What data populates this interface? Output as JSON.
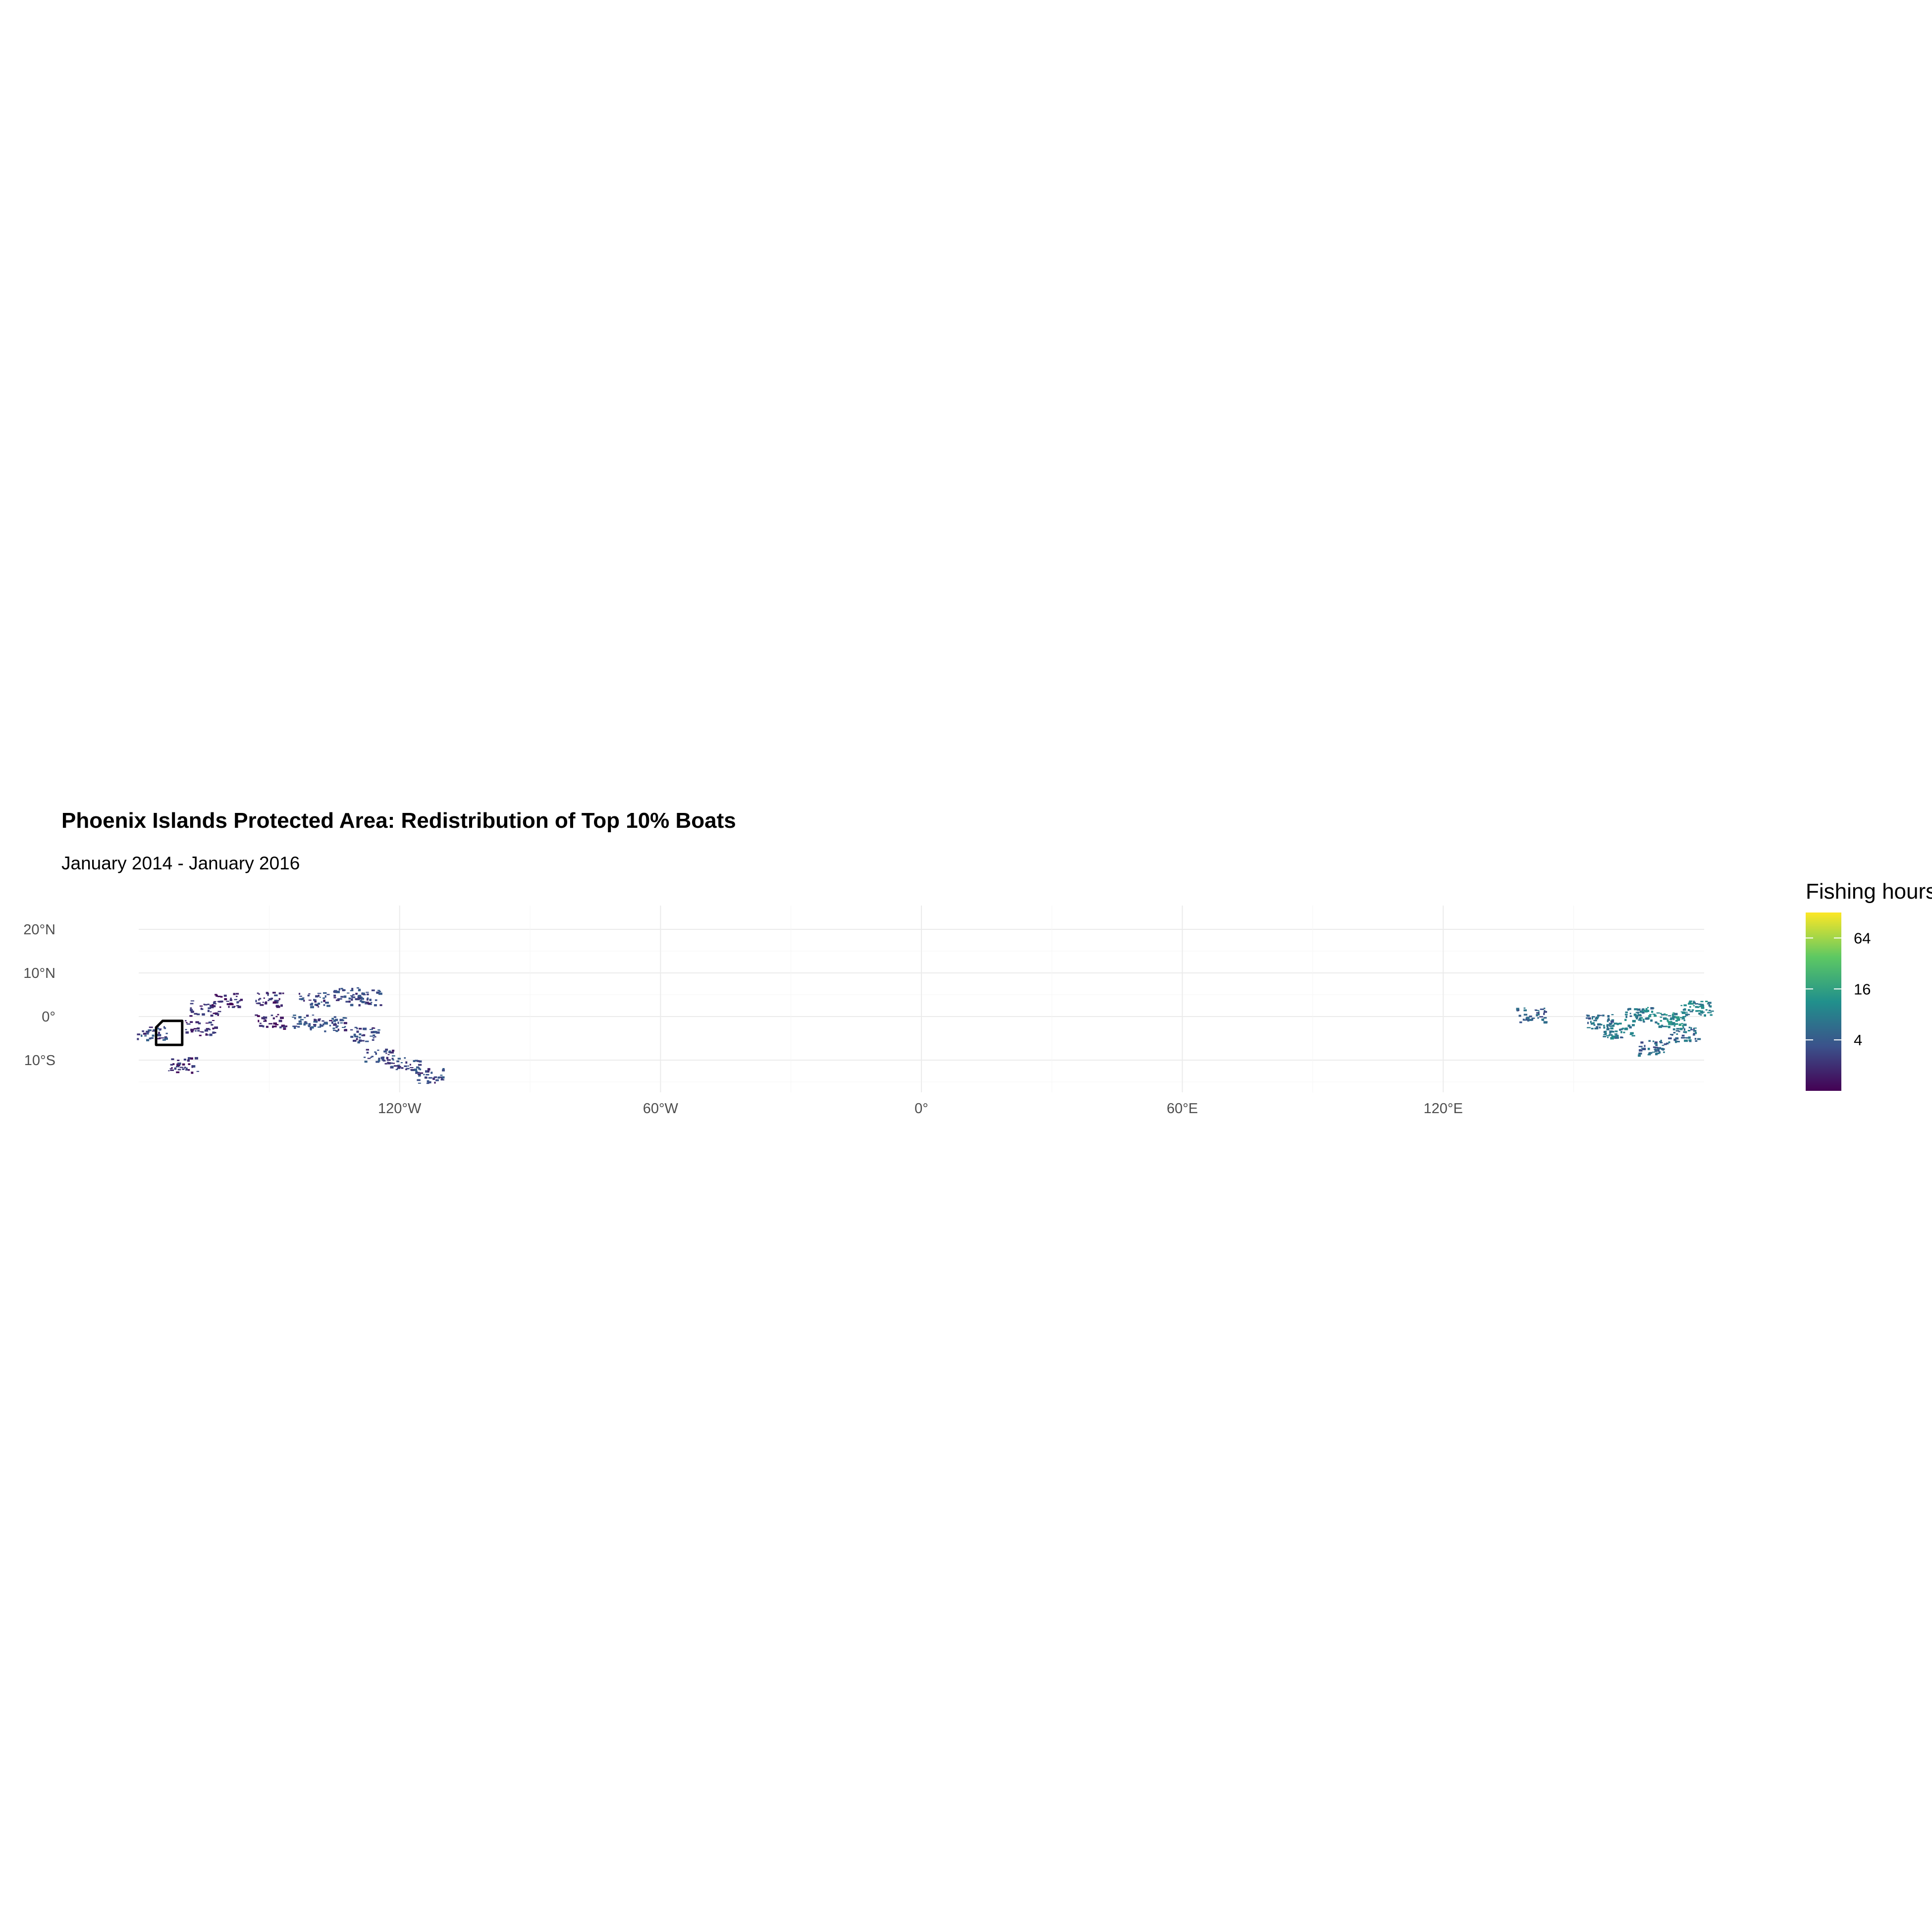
{
  "map": {
    "title": "Phoenix Islands Protected Area: Redistribution of Top 10% Boats",
    "subtitle": "January 2014 - January 2016",
    "lat_labels": [
      {
        "label": "20°N",
        "lat": 20
      },
      {
        "label": "10°N",
        "lat": 10
      },
      {
        "label": "0°",
        "lat": 0
      },
      {
        "label": "10°S",
        "lat": -10
      }
    ],
    "lon_labels": [
      {
        "label": "120°W",
        "lon": -120
      },
      {
        "label": "60°W",
        "lon": -60
      },
      {
        "label": "0°",
        "lon": 0
      },
      {
        "label": "60°E",
        "lon": 60
      },
      {
        "label": "120°E",
        "lon": 120
      }
    ],
    "extent": {
      "lon": [
        -180,
        180
      ],
      "lat": [
        -16,
        25
      ]
    },
    "protected_area_polygon": [
      [
        -176,
        -6.5
      ],
      [
        -176,
        -2.5
      ],
      [
        -174.5,
        -1
      ],
      [
        -170,
        -1
      ],
      [
        -170,
        -6.5
      ]
    ],
    "fishing_clusters": [
      {
        "lon": -177,
        "lat": -3.5,
        "hours": 3
      },
      {
        "lon": -166,
        "lat": -2.5,
        "hours": 2
      },
      {
        "lon": -165,
        "lat": 2,
        "hours": 2
      },
      {
        "lon": -160,
        "lat": 4,
        "hours": 2
      },
      {
        "lon": -150,
        "lat": 4,
        "hours": 2
      },
      {
        "lon": -140,
        "lat": 4,
        "hours": 3
      },
      {
        "lon": -132,
        "lat": 5,
        "hours": 3
      },
      {
        "lon": -128,
        "lat": 4.5,
        "hours": 3
      },
      {
        "lon": -150,
        "lat": -1,
        "hours": 2
      },
      {
        "lon": -142,
        "lat": -1,
        "hours": 3
      },
      {
        "lon": -135,
        "lat": -1.5,
        "hours": 3
      },
      {
        "lon": -128,
        "lat": -4,
        "hours": 3
      },
      {
        "lon": -125,
        "lat": -9,
        "hours": 3
      },
      {
        "lon": -119,
        "lat": -11,
        "hours": 3
      },
      {
        "lon": -113,
        "lat": -13.5,
        "hours": 3
      },
      {
        "lon": -170,
        "lat": -11,
        "hours": 2
      },
      {
        "lon": 140,
        "lat": 0.5,
        "hours": 5
      },
      {
        "lon": 156,
        "lat": -1,
        "hours": 6
      },
      {
        "lon": 165,
        "lat": 0.5,
        "hours": 8
      },
      {
        "lon": 172,
        "lat": -0.5,
        "hours": 10
      },
      {
        "lon": 178,
        "lat": 2,
        "hours": 9
      },
      {
        "lon": 175,
        "lat": -4,
        "hours": 6
      },
      {
        "lon": 168,
        "lat": -7,
        "hours": 5
      },
      {
        "lon": 160,
        "lat": -3,
        "hours": 7
      }
    ]
  },
  "legend": {
    "title": "Fishing hours",
    "ticks": [
      {
        "label": "64",
        "value": 64
      },
      {
        "label": "16",
        "value": 16
      },
      {
        "label": "4",
        "value": 4
      }
    ],
    "colors": [
      "#440154",
      "#3b528b",
      "#21908c",
      "#5dc863",
      "#fde725"
    ],
    "range": [
      1,
      128
    ],
    "scale": "log"
  }
}
